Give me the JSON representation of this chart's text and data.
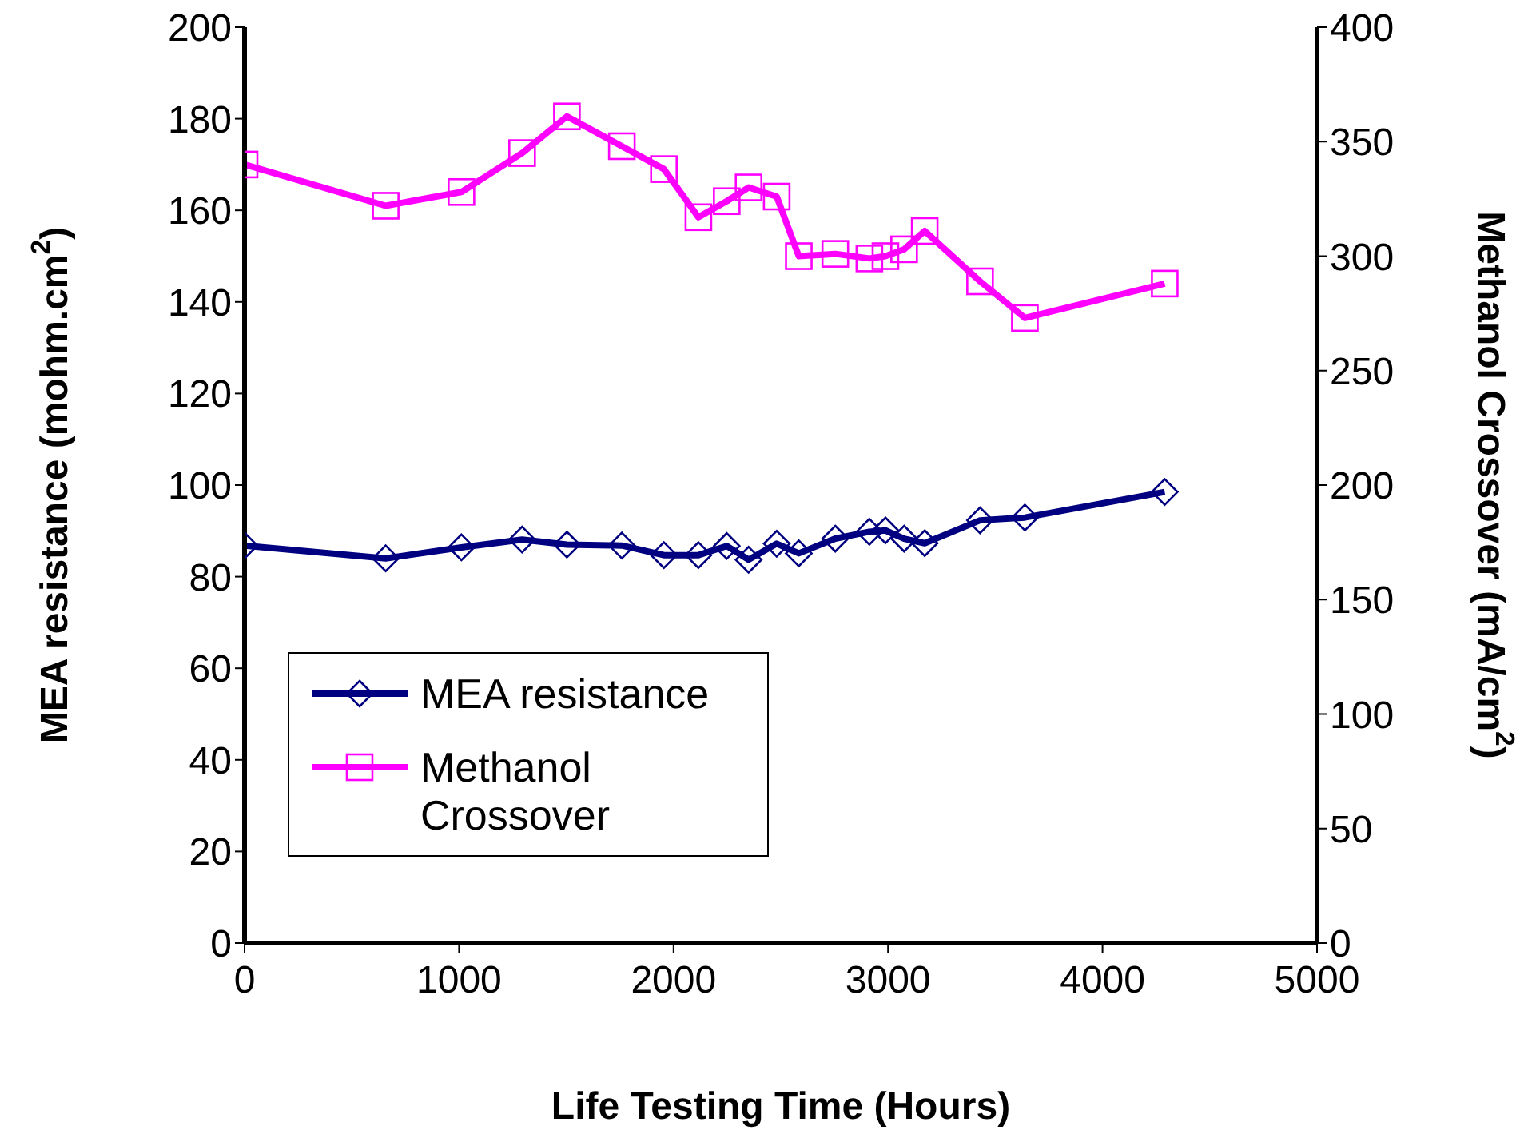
{
  "chart_data": {
    "type": "line",
    "xlabel": "Life Testing Time (Hours)",
    "ylabel": "MEA resistance (mohm.cm$^{2}$)",
    "y2label": "Methanol Crossover (mA/cm$^{2}$)",
    "x": [
      0,
      658,
      1011,
      1294,
      1503,
      1759,
      1955,
      2116,
      2248,
      2350,
      2481,
      2584,
      2754,
      2913,
      2988,
      3075,
      3171,
      3429,
      3638,
      4290
    ],
    "series": [
      {
        "name": "MEA resistance",
        "color": "#000080",
        "marker": "diamond",
        "values": [
          86.8,
          84.0,
          86.4,
          88.1,
          87.0,
          86.8,
          84.7,
          84.7,
          86.7,
          83.7,
          87.2,
          85.1,
          88.3,
          89.8,
          90.1,
          88.3,
          87.3,
          92.3,
          92.9,
          98.5
        ]
      },
      {
        "name": "Methanol Crossover",
        "color": "#ff00ff",
        "marker": "square",
        "axis": "y2",
        "values": [
          340,
          322,
          328,
          345,
          361,
          348,
          338,
          317,
          324,
          330,
          326,
          300,
          301,
          299,
          300,
          303,
          311,
          289,
          273,
          288
        ]
      }
    ],
    "xlim": [
      0,
      5000
    ],
    "xticks": [
      0,
      1000,
      2000,
      3000,
      4000,
      5000
    ],
    "ylim": [
      0,
      200
    ],
    "yticks": [
      0,
      20,
      40,
      60,
      80,
      100,
      120,
      140,
      160,
      180,
      200
    ],
    "y2lim": [
      0,
      400
    ],
    "y2ticks": [
      0,
      50,
      100,
      150,
      200,
      250,
      300,
      350,
      400
    ],
    "grid": false,
    "legend": "bottom left",
    "line_style": "solid"
  }
}
